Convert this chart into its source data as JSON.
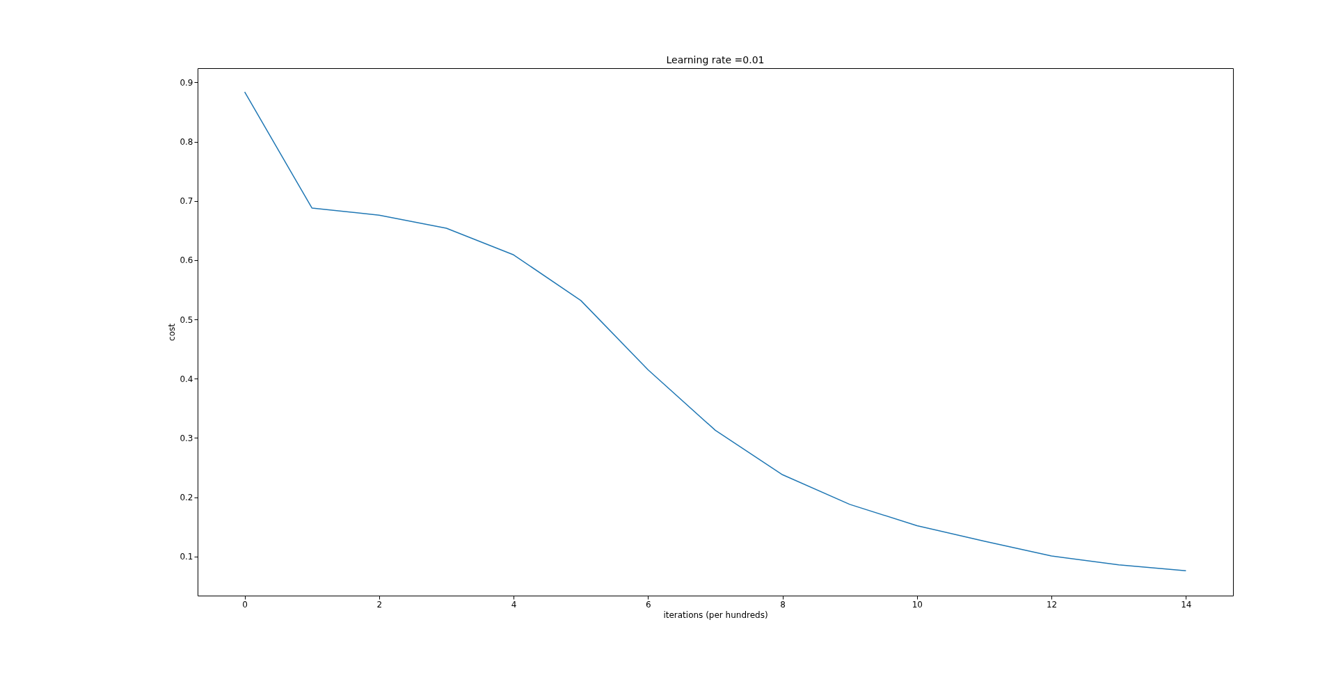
{
  "chart_data": {
    "type": "line",
    "title": "Learning rate =0.01",
    "xlabel": "iterations (per hundreds)",
    "ylabel": "cost",
    "x": [
      0,
      1,
      2,
      3,
      4,
      5,
      6,
      7,
      8,
      9,
      10,
      11,
      12,
      13,
      14
    ],
    "series": [
      {
        "color": "#1f77b4",
        "values": [
          0.884,
          0.688,
          0.676,
          0.654,
          0.609,
          0.532,
          0.415,
          0.313,
          0.238,
          0.188,
          0.152,
          0.126,
          0.101,
          0.086,
          0.076
        ]
      }
    ],
    "xlim": [
      -0.7,
      14.7
    ],
    "xticks": [
      0,
      2,
      4,
      6,
      8,
      10,
      12,
      14
    ],
    "ylim": [
      0.034,
      0.924
    ],
    "yticks": [
      0.1,
      0.2,
      0.3,
      0.4,
      0.5,
      0.6,
      0.7,
      0.8,
      0.9
    ],
    "grid": false
  }
}
